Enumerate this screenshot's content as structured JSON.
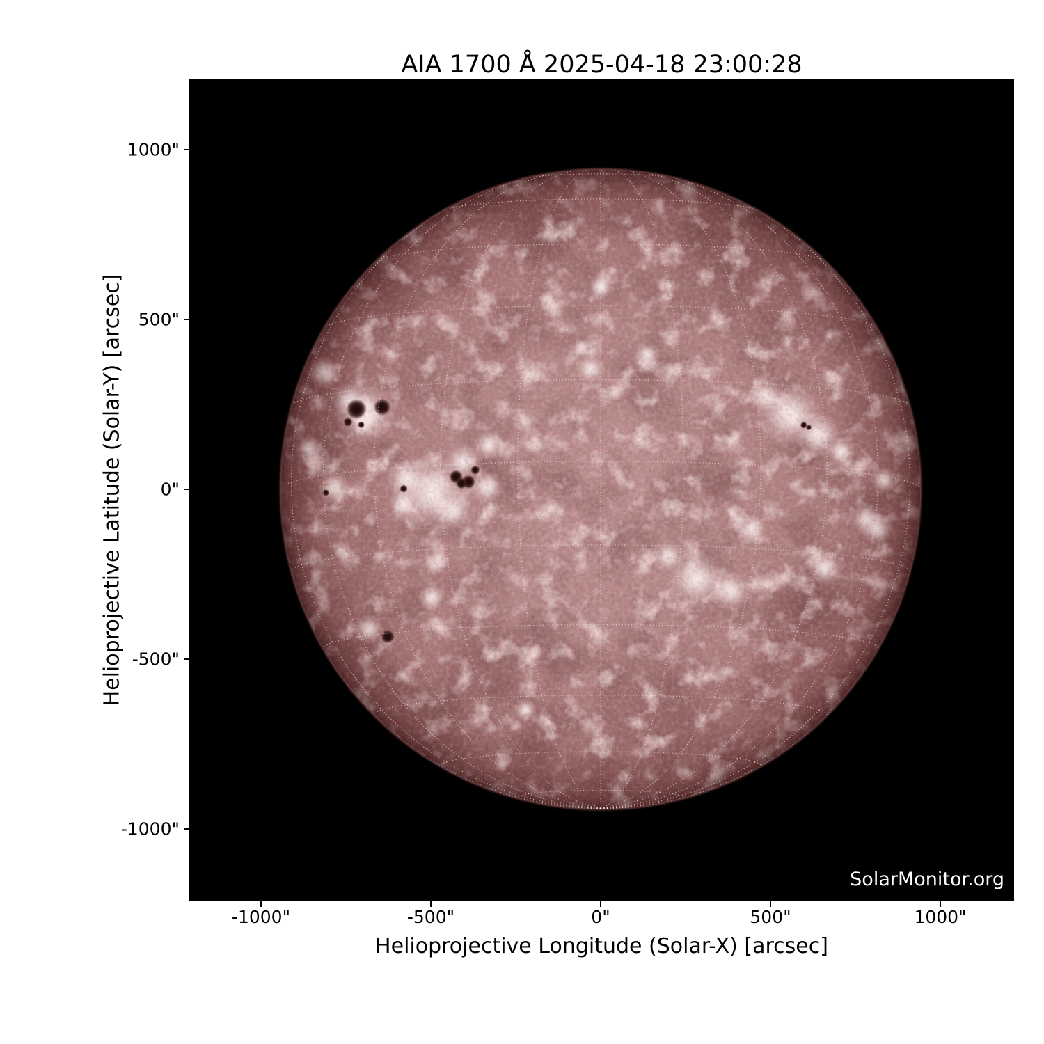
{
  "figure": {
    "title": "AIA 1700 Å 2025-04-18 23:00:28",
    "watermark": "SolarMonitor.org",
    "background_color": "#ffffff",
    "plot_background_color": "#000000",
    "text_color": "#000000",
    "watermark_color": "#ffffff"
  },
  "axes": {
    "x": {
      "label": "Helioprojective Longitude (Solar-X) [arcsec]",
      "tick_labels": [
        "-1000\"",
        "-500\"",
        "0\"",
        "500\"",
        "1000\""
      ],
      "tick_values": [
        -1000,
        -500,
        0,
        500,
        1000
      ]
    },
    "y": {
      "label": "Helioprojective Latitude (Solar-Y) [arcsec]",
      "tick_labels": [
        "1000\"",
        "500\"",
        "0\"",
        "-500\"",
        "-1000\""
      ],
      "tick_values": [
        1000,
        500,
        0,
        -500,
        -1000
      ]
    }
  },
  "chart_data": {
    "type": "heatmap",
    "description": "Full-disk SDO/AIA 1700 Angstrom solar UV continuum image with heliographic grid overlay",
    "title": "AIA 1700 Å 2025-04-18 23:00:28",
    "instrument": "AIA 1700 Å",
    "datetime": "2025-04-18 23:00:28",
    "xlabel": "Helioprojective Longitude (Solar-X) [arcsec]",
    "ylabel": "Helioprojective Latitude (Solar-Y) [arcsec]",
    "xlim": [
      -1211,
      1217
    ],
    "ylim": [
      -1213,
      1209
    ],
    "x_ticks": [
      -1000,
      -500,
      0,
      500,
      1000
    ],
    "y_ticks": [
      1000,
      500,
      0,
      -500,
      -1000
    ],
    "grid": true,
    "legend": false,
    "watermark": "SolarMonitor.org",
    "solar_disk": {
      "center_x_arcsec": 0,
      "center_y_arcsec": 0,
      "radius_arcsec": 943,
      "grid_spacing_deg": 15,
      "b0_deg": -5,
      "disk_center_color": "#bd9090",
      "disk_mid_color": "#ab7b7b",
      "disk_limb_color": "#824f4f",
      "plage_color": "#f3e6e6",
      "sunspot_color": "#2a0f0f",
      "grid_color": "#ffe8e8"
    },
    "sunspots_arcsec": [
      {
        "x": -719,
        "y": 236,
        "r": 18
      },
      {
        "x": -643,
        "y": 242,
        "r": 15
      },
      {
        "x": -744,
        "y": 198,
        "r": 8
      },
      {
        "x": -705,
        "y": 190,
        "r": 6
      },
      {
        "x": -426,
        "y": 37,
        "r": 12
      },
      {
        "x": -389,
        "y": 22,
        "r": 12
      },
      {
        "x": -410,
        "y": 18,
        "r": 10
      },
      {
        "x": -369,
        "y": 57,
        "r": 8
      },
      {
        "x": -580,
        "y": 2,
        "r": 7
      },
      {
        "x": -809,
        "y": -10,
        "r": 6
      },
      {
        "x": -627,
        "y": -434,
        "r": 12
      },
      {
        "x": 598,
        "y": 189,
        "r": 6
      },
      {
        "x": 613,
        "y": 182,
        "r": 5
      }
    ],
    "plage_regions_arcsec": [
      {
        "x": -693,
        "y": 221,
        "r": 95
      },
      {
        "x": -740,
        "y": 262,
        "r": 55
      },
      {
        "x": -816,
        "y": 344,
        "r": 50
      },
      {
        "x": -498,
        "y": -10,
        "r": 115
      },
      {
        "x": -570,
        "y": 30,
        "r": 65
      },
      {
        "x": -437,
        "y": -62,
        "r": 60
      },
      {
        "x": -406,
        "y": 80,
        "r": 55
      },
      {
        "x": -334,
        "y": 5,
        "r": 50
      },
      {
        "x": -580,
        "y": -40,
        "r": 45
      },
      {
        "x": -785,
        "y": 5,
        "r": 50
      },
      {
        "x": 557,
        "y": 220,
        "r": 100
      },
      {
        "x": 640,
        "y": 160,
        "r": 70
      },
      {
        "x": 486,
        "y": 272,
        "r": 50
      },
      {
        "x": 708,
        "y": 110,
        "r": 45
      },
      {
        "x": 281,
        "y": -266,
        "r": 85
      },
      {
        "x": 383,
        "y": -300,
        "r": 60
      },
      {
        "x": 199,
        "y": -198,
        "r": 50
      },
      {
        "x": 660,
        "y": -230,
        "r": 55
      },
      {
        "x": -682,
        "y": -412,
        "r": 45
      },
      {
        "x": 0,
        "y": 595,
        "r": 40
      },
      {
        "x": -30,
        "y": 355,
        "r": 45
      },
      {
        "x": 137,
        "y": 395,
        "r": 40
      },
      {
        "x": 783,
        "y": -88,
        "r": 50
      },
      {
        "x": 814,
        "y": -117,
        "r": 50
      },
      {
        "x": 834,
        "y": 27,
        "r": 40
      },
      {
        "x": -330,
        "y": 130,
        "r": 45
      },
      {
        "x": 445,
        "y": -115,
        "r": 45
      },
      {
        "x": -498,
        "y": -320,
        "r": 40
      },
      {
        "x": -860,
        "y": 120,
        "r": 40
      },
      {
        "x": -221,
        "y": -650,
        "r": 35
      }
    ],
    "dark_patches_arcsec": [
      {
        "x": 380,
        "y": 650,
        "r": 230
      },
      {
        "x": -210,
        "y": 820,
        "r": 180
      },
      {
        "x": 170,
        "y": -610,
        "r": 200
      },
      {
        "x": -340,
        "y": -510,
        "r": 160
      },
      {
        "x": 590,
        "y": -400,
        "r": 150
      },
      {
        "x": -640,
        "y": 560,
        "r": 130
      }
    ]
  }
}
